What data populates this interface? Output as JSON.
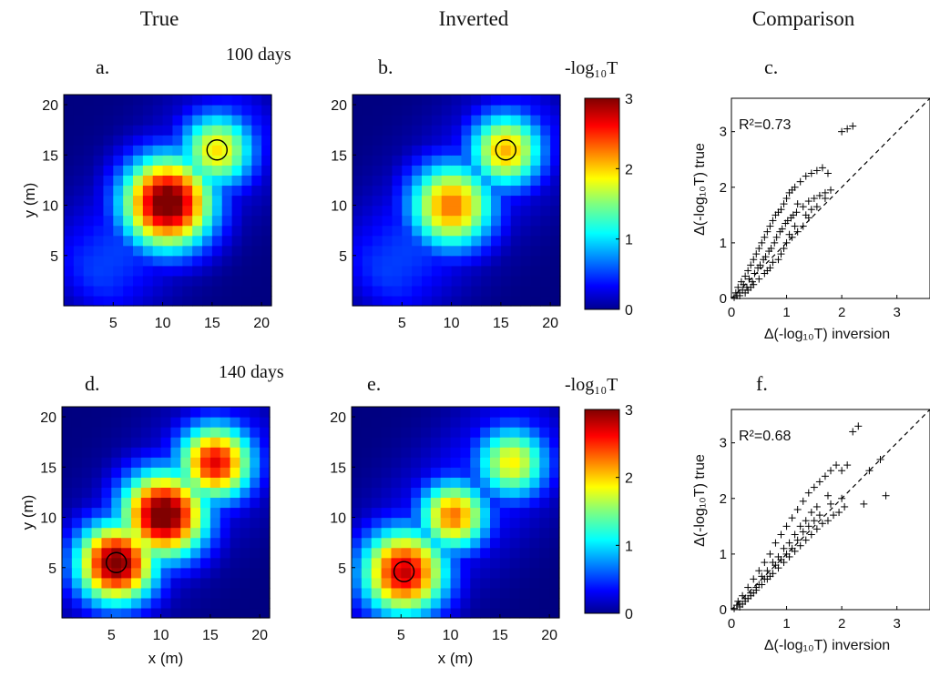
{
  "columns": {
    "true": "True",
    "inverted": "Inverted",
    "comparison": "Comparison"
  },
  "rows": [
    {
      "time_label": "100 days",
      "panels": [
        "a.",
        "b.",
        "c."
      ]
    },
    {
      "time_label": "140 days",
      "panels": [
        "d.",
        "e.",
        "f."
      ]
    }
  ],
  "colorbar": {
    "label": "-log₁₀T",
    "ticks": [
      "0",
      "1",
      "2",
      "3"
    ],
    "range": [
      0,
      3
    ],
    "colormap": "jet"
  },
  "map_axes": {
    "xlabel": "x (m)",
    "ylabel": "y (m)",
    "xticks": [
      "5",
      "10",
      "15",
      "20"
    ],
    "yticks": [
      "5",
      "10",
      "15",
      "20"
    ]
  },
  "scatter_axes": {
    "xlabel": "Δ(-log₁₀T) inversion",
    "ylabel": "Δ(-log₁₀T) true",
    "xticks": [
      "0",
      "1",
      "2",
      "3"
    ],
    "yticks": [
      "0",
      "1",
      "2",
      "3"
    ]
  },
  "chart_data": [
    {
      "panel": "a",
      "type": "heatmap",
      "x_range": [
        0,
        21
      ],
      "y_range": [
        0,
        21
      ],
      "value_range": [
        0,
        3
      ],
      "hotspots": [
        {
          "x": 10.5,
          "y": 10.3,
          "peak": 3.0,
          "spread": 3.2
        },
        {
          "x": 15.5,
          "y": 15.5,
          "peak": 1.75,
          "spread": 2.6
        }
      ],
      "observation_wells": [
        {
          "x": 15.5,
          "y": 15.5
        }
      ]
    },
    {
      "panel": "b",
      "type": "heatmap",
      "x_range": [
        0,
        21
      ],
      "y_range": [
        0,
        21
      ],
      "value_range": [
        0,
        3
      ],
      "hotspots": [
        {
          "x": 10.0,
          "y": 10.0,
          "peak": 2.1,
          "spread": 3.0
        },
        {
          "x": 15.5,
          "y": 15.5,
          "peak": 1.9,
          "spread": 2.6
        }
      ],
      "observation_wells": [
        {
          "x": 15.5,
          "y": 15.5
        }
      ]
    },
    {
      "panel": "c",
      "type": "scatter",
      "annotation": "R²=0.73",
      "x_range": [
        0,
        3.6
      ],
      "y_range": [
        0,
        3.6
      ],
      "reference_line": "1:1",
      "points": [
        [
          0.05,
          0.02
        ],
        [
          0.08,
          0.1
        ],
        [
          0.1,
          0.05
        ],
        [
          0.12,
          0.2
        ],
        [
          0.15,
          0.1
        ],
        [
          0.18,
          0.3
        ],
        [
          0.2,
          0.15
        ],
        [
          0.22,
          0.25
        ],
        [
          0.25,
          0.4
        ],
        [
          0.28,
          0.2
        ],
        [
          0.3,
          0.5
        ],
        [
          0.32,
          0.35
        ],
        [
          0.35,
          0.6
        ],
        [
          0.38,
          0.3
        ],
        [
          0.4,
          0.7
        ],
        [
          0.42,
          0.45
        ],
        [
          0.45,
          0.8
        ],
        [
          0.48,
          0.55
        ],
        [
          0.5,
          0.9
        ],
        [
          0.52,
          0.6
        ],
        [
          0.55,
          1.0
        ],
        [
          0.58,
          0.7
        ],
        [
          0.6,
          1.1
        ],
        [
          0.62,
          0.75
        ],
        [
          0.65,
          1.2
        ],
        [
          0.68,
          0.85
        ],
        [
          0.7,
          1.3
        ],
        [
          0.72,
          0.9
        ],
        [
          0.75,
          1.4
        ],
        [
          0.78,
          1.0
        ],
        [
          0.8,
          1.5
        ],
        [
          0.82,
          1.1
        ],
        [
          0.85,
          1.55
        ],
        [
          0.88,
          1.2
        ],
        [
          0.9,
          1.6
        ],
        [
          0.92,
          1.25
        ],
        [
          0.95,
          1.7
        ],
        [
          0.98,
          1.35
        ],
        [
          1.0,
          1.8
        ],
        [
          1.02,
          1.4
        ],
        [
          1.05,
          1.9
        ],
        [
          1.08,
          1.45
        ],
        [
          1.1,
          1.95
        ],
        [
          1.12,
          1.5
        ],
        [
          1.15,
          2.0
        ],
        [
          1.18,
          1.55
        ],
        [
          1.2,
          1.7
        ],
        [
          1.25,
          2.1
        ],
        [
          1.3,
          1.65
        ],
        [
          1.35,
          2.2
        ],
        [
          1.4,
          1.75
        ],
        [
          1.45,
          2.25
        ],
        [
          1.5,
          1.8
        ],
        [
          1.55,
          2.3
        ],
        [
          1.6,
          1.85
        ],
        [
          1.65,
          2.35
        ],
        [
          1.7,
          1.9
        ],
        [
          1.75,
          2.25
        ],
        [
          1.8,
          1.95
        ],
        [
          2.0,
          3.0
        ],
        [
          2.1,
          3.05
        ],
        [
          2.2,
          3.1
        ],
        [
          0.3,
          0.15
        ],
        [
          0.5,
          0.35
        ],
        [
          0.7,
          0.55
        ],
        [
          0.9,
          0.8
        ],
        [
          1.1,
          1.1
        ],
        [
          1.3,
          1.3
        ],
        [
          0.4,
          0.25
        ],
        [
          0.6,
          0.45
        ],
        [
          0.85,
          0.7
        ],
        [
          1.0,
          1.0
        ],
        [
          1.2,
          1.2
        ],
        [
          1.4,
          1.45
        ],
        [
          0.15,
          0.05
        ],
        [
          0.25,
          0.1
        ],
        [
          0.35,
          0.2
        ],
        [
          0.65,
          0.5
        ],
        [
          0.75,
          0.65
        ],
        [
          0.95,
          0.9
        ],
        [
          1.05,
          1.15
        ],
        [
          1.15,
          1.3
        ],
        [
          1.35,
          1.5
        ],
        [
          1.45,
          1.6
        ],
        [
          1.55,
          1.65
        ],
        [
          1.7,
          1.8
        ]
      ]
    },
    {
      "panel": "d",
      "type": "heatmap",
      "x_range": [
        0,
        21
      ],
      "y_range": [
        0,
        21
      ],
      "value_range": [
        0,
        3
      ],
      "hotspots": [
        {
          "x": 10.3,
          "y": 10.3,
          "peak": 3.0,
          "spread": 3.0
        },
        {
          "x": 5.5,
          "y": 5.5,
          "peak": 2.9,
          "spread": 2.8
        },
        {
          "x": 15.5,
          "y": 15.5,
          "peak": 2.5,
          "spread": 2.6
        }
      ],
      "observation_wells": [
        {
          "x": 5.5,
          "y": 5.5
        }
      ]
    },
    {
      "panel": "e",
      "type": "heatmap",
      "x_range": [
        0,
        21
      ],
      "y_range": [
        0,
        21
      ],
      "value_range": [
        0,
        3
      ],
      "hotspots": [
        {
          "x": 5.3,
          "y": 4.6,
          "peak": 2.6,
          "spread": 3.0
        },
        {
          "x": 10.3,
          "y": 10.2,
          "peak": 2.1,
          "spread": 2.4
        },
        {
          "x": 16.2,
          "y": 15.5,
          "peak": 1.7,
          "spread": 2.5
        }
      ],
      "observation_wells": [
        {
          "x": 5.3,
          "y": 4.6
        }
      ]
    },
    {
      "panel": "f",
      "type": "scatter",
      "annotation": "R²=0.68",
      "x_range": [
        0,
        3.6
      ],
      "y_range": [
        0,
        3.6
      ],
      "reference_line": "1:1",
      "points": [
        [
          0.05,
          0.02
        ],
        [
          0.1,
          0.08
        ],
        [
          0.12,
          0.15
        ],
        [
          0.15,
          0.05
        ],
        [
          0.2,
          0.25
        ],
        [
          0.25,
          0.15
        ],
        [
          0.3,
          0.4
        ],
        [
          0.35,
          0.25
        ],
        [
          0.4,
          0.55
        ],
        [
          0.45,
          0.35
        ],
        [
          0.5,
          0.7
        ],
        [
          0.55,
          0.45
        ],
        [
          0.6,
          0.85
        ],
        [
          0.65,
          0.55
        ],
        [
          0.7,
          1.0
        ],
        [
          0.75,
          0.65
        ],
        [
          0.8,
          1.2
        ],
        [
          0.85,
          0.75
        ],
        [
          0.9,
          1.35
        ],
        [
          0.95,
          0.85
        ],
        [
          1.0,
          1.5
        ],
        [
          1.05,
          0.95
        ],
        [
          1.1,
          1.65
        ],
        [
          1.15,
          1.05
        ],
        [
          1.2,
          1.8
        ],
        [
          1.25,
          1.15
        ],
        [
          1.3,
          1.95
        ],
        [
          1.35,
          1.25
        ],
        [
          1.4,
          2.1
        ],
        [
          1.45,
          1.35
        ],
        [
          1.5,
          2.2
        ],
        [
          1.55,
          1.45
        ],
        [
          1.6,
          2.3
        ],
        [
          1.65,
          1.55
        ],
        [
          1.7,
          2.4
        ],
        [
          1.75,
          1.6
        ],
        [
          1.8,
          2.5
        ],
        [
          1.85,
          1.7
        ],
        [
          1.9,
          2.6
        ],
        [
          1.95,
          1.75
        ],
        [
          2.0,
          2.5
        ],
        [
          2.05,
          1.85
        ],
        [
          2.1,
          2.6
        ],
        [
          2.2,
          3.2
        ],
        [
          2.3,
          3.3
        ],
        [
          2.4,
          1.9
        ],
        [
          2.5,
          2.5
        ],
        [
          2.7,
          2.7
        ],
        [
          2.8,
          2.05
        ],
        [
          0.2,
          0.1
        ],
        [
          0.3,
          0.2
        ],
        [
          0.5,
          0.45
        ],
        [
          0.7,
          0.6
        ],
        [
          0.9,
          0.9
        ],
        [
          1.1,
          1.1
        ],
        [
          1.3,
          1.4
        ],
        [
          1.5,
          1.6
        ],
        [
          0.4,
          0.3
        ],
        [
          0.6,
          0.55
        ],
        [
          0.8,
          0.8
        ],
        [
          1.0,
          1.0
        ],
        [
          1.2,
          1.25
        ],
        [
          1.4,
          1.5
        ],
        [
          1.6,
          1.7
        ],
        [
          1.8,
          1.9
        ],
        [
          2.0,
          2.0
        ],
        [
          0.25,
          0.2
        ],
        [
          0.45,
          0.4
        ],
        [
          0.65,
          0.7
        ],
        [
          0.85,
          0.95
        ],
        [
          1.05,
          1.2
        ],
        [
          1.25,
          1.5
        ],
        [
          1.45,
          1.75
        ],
        [
          0.15,
          0.1
        ],
        [
          0.35,
          0.3
        ],
        [
          0.55,
          0.6
        ],
        [
          0.75,
          0.85
        ],
        [
          0.95,
          1.1
        ],
        [
          1.15,
          1.35
        ],
        [
          1.35,
          1.6
        ],
        [
          1.55,
          1.85
        ],
        [
          1.75,
          2.05
        ]
      ]
    }
  ]
}
